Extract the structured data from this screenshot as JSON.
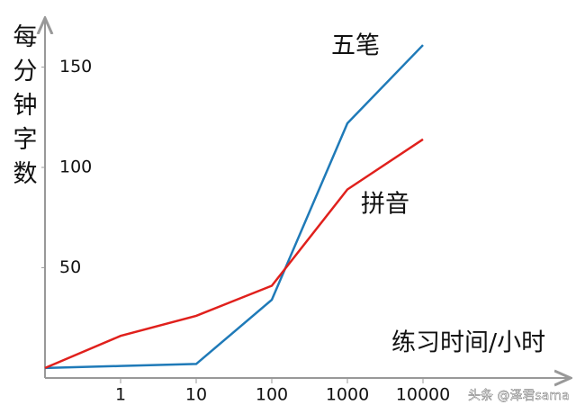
{
  "chart_data": {
    "type": "line",
    "y_label": "每分钟字数",
    "x_label": "练习时间/小时",
    "categories": [
      null,
      "1",
      "10",
      "100",
      "1000",
      "10000"
    ],
    "series": [
      {
        "name": "五笔",
        "color": "#1f7ab8",
        "values": [
          0,
          1,
          2,
          34,
          122,
          161
        ]
      },
      {
        "name": "拼音",
        "color": "#e0201c",
        "values": [
          0,
          16,
          26,
          41,
          89,
          114
        ]
      }
    ],
    "ylim": [
      -5,
      170
    ],
    "yticks": [
      50,
      100,
      150
    ],
    "watermark": "头条 @泽君sama"
  }
}
